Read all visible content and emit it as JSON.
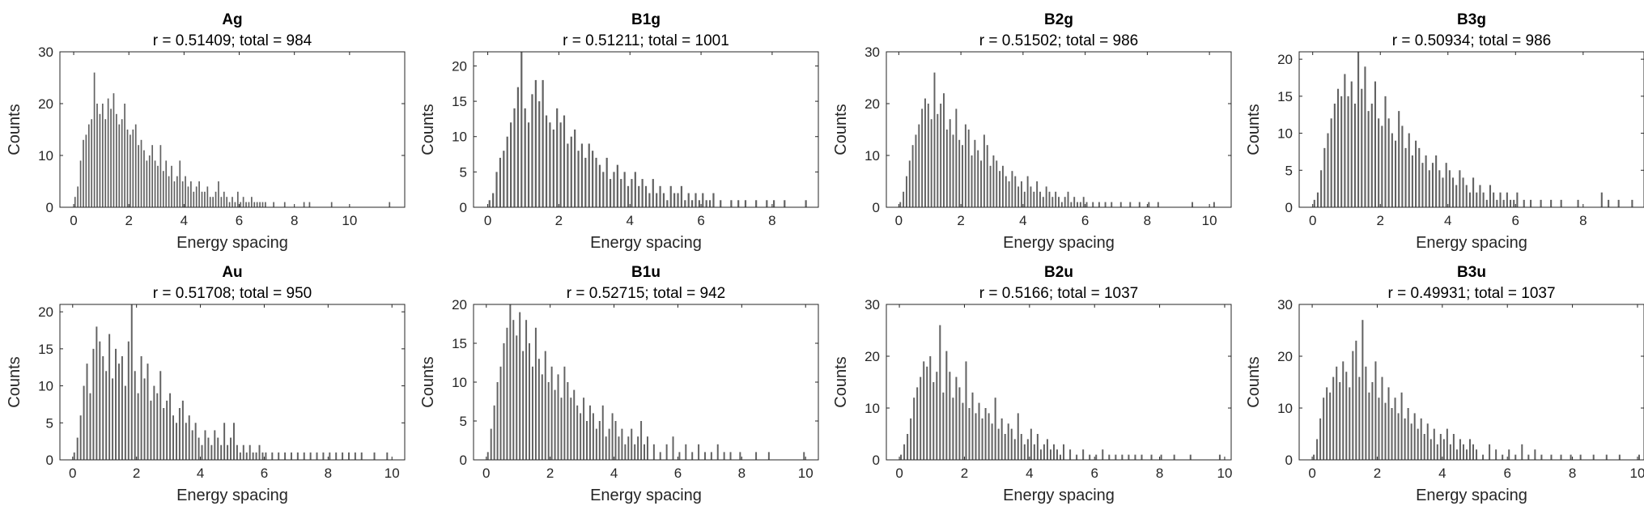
{
  "chart_data": [
    {
      "type": "bar",
      "title": "Ag",
      "subtitle": "r = 0.51409; total = 984",
      "xlabel": "Energy spacing",
      "ylabel": "Counts",
      "xlim": [
        -0.5,
        12
      ],
      "ylim": [
        0,
        30
      ],
      "xticks": [
        0,
        2,
        4,
        6,
        8,
        10
      ],
      "yticks": [
        0,
        10,
        20,
        30
      ],
      "bar_color": "#626262",
      "bin_width": 0.05,
      "x": [
        0.05,
        0.15,
        0.25,
        0.35,
        0.45,
        0.55,
        0.65,
        0.75,
        0.85,
        0.95,
        1.05,
        1.15,
        1.25,
        1.35,
        1.45,
        1.55,
        1.65,
        1.75,
        1.85,
        1.95,
        2.05,
        2.15,
        2.25,
        2.35,
        2.45,
        2.55,
        2.65,
        2.75,
        2.85,
        2.95,
        3.05,
        3.15,
        3.25,
        3.35,
        3.45,
        3.55,
        3.65,
        3.75,
        3.85,
        3.95,
        4.05,
        4.15,
        4.25,
        4.35,
        4.45,
        4.55,
        4.65,
        4.75,
        4.85,
        4.95,
        5.05,
        5.15,
        5.25,
        5.35,
        5.45,
        5.55,
        5.65,
        5.75,
        5.85,
        5.95,
        6.05,
        6.15,
        6.25,
        6.35,
        6.45,
        6.55,
        6.65,
        6.75,
        6.85,
        6.95,
        7.25,
        7.65,
        8.35,
        8.55,
        9.35,
        11.45
      ],
      "values": [
        2,
        4,
        9,
        13,
        14,
        16,
        17,
        26,
        20,
        18,
        20,
        17,
        21,
        19,
        22,
        18,
        16,
        17,
        20,
        15,
        14,
        15,
        16,
        12,
        13,
        11,
        9,
        10,
        12,
        9,
        8,
        12,
        7,
        9,
        6,
        8,
        5,
        6,
        9,
        5,
        6,
        4,
        5,
        3,
        4,
        5,
        3,
        3,
        4,
        2,
        2,
        3,
        5,
        2,
        3,
        2,
        1,
        2,
        1,
        3,
        1,
        2,
        1,
        1,
        2,
        1,
        1,
        1,
        1,
        1,
        1,
        1,
        1,
        1,
        1,
        1
      ]
    },
    {
      "type": "bar",
      "title": "B1g",
      "subtitle": "r = 0.51211; total = 1001",
      "xlabel": "Energy spacing",
      "ylabel": "Counts",
      "xlim": [
        -0.4,
        9.3
      ],
      "ylim": [
        0,
        22
      ],
      "xticks": [
        0,
        2,
        4,
        6,
        8
      ],
      "yticks": [
        0,
        5,
        10,
        15,
        20
      ],
      "bar_color": "#626262",
      "bin_width": 0.05,
      "x": [
        0.05,
        0.15,
        0.25,
        0.35,
        0.45,
        0.55,
        0.65,
        0.75,
        0.85,
        0.95,
        1.05,
        1.15,
        1.25,
        1.35,
        1.45,
        1.55,
        1.65,
        1.75,
        1.85,
        1.95,
        2.05,
        2.15,
        2.25,
        2.35,
        2.45,
        2.55,
        2.65,
        2.75,
        2.85,
        2.95,
        3.05,
        3.15,
        3.25,
        3.35,
        3.45,
        3.55,
        3.65,
        3.75,
        3.85,
        3.95,
        4.05,
        4.15,
        4.25,
        4.35,
        4.45,
        4.55,
        4.65,
        4.75,
        4.85,
        4.95,
        5.05,
        5.15,
        5.25,
        5.35,
        5.45,
        5.55,
        5.65,
        5.75,
        5.85,
        5.95,
        6.05,
        6.15,
        6.25,
        6.35,
        6.55,
        6.85,
        7.05,
        7.25,
        7.55,
        7.85,
        8.05,
        8.35,
        8.95
      ],
      "values": [
        1,
        2,
        5,
        7,
        8,
        10,
        12,
        14,
        17,
        22,
        14,
        12,
        16,
        18,
        15,
        18,
        13,
        12,
        11,
        14,
        12,
        13,
        9,
        10,
        11,
        8,
        9,
        7,
        9,
        8,
        7,
        6,
        5,
        7,
        4,
        5,
        6,
        4,
        5,
        3,
        4,
        5,
        3,
        4,
        3,
        2,
        4,
        2,
        3,
        2,
        1,
        3,
        2,
        2,
        3,
        1,
        2,
        1,
        2,
        1,
        2,
        1,
        1,
        2,
        1,
        1,
        1,
        1,
        1,
        1,
        1,
        1,
        1
      ]
    },
    {
      "type": "bar",
      "title": "B2g",
      "subtitle": "r = 0.51502; total = 986",
      "xlabel": "Energy spacing",
      "ylabel": "Counts",
      "xlim": [
        -0.4,
        10.7
      ],
      "ylim": [
        0,
        30
      ],
      "xticks": [
        0,
        2,
        4,
        6,
        8,
        10
      ],
      "yticks": [
        0,
        10,
        20,
        30
      ],
      "bar_color": "#626262",
      "bin_width": 0.05,
      "x": [
        0.05,
        0.15,
        0.25,
        0.35,
        0.45,
        0.55,
        0.65,
        0.75,
        0.85,
        0.95,
        1.05,
        1.15,
        1.25,
        1.35,
        1.45,
        1.55,
        1.65,
        1.75,
        1.85,
        1.95,
        2.05,
        2.15,
        2.25,
        2.35,
        2.45,
        2.55,
        2.65,
        2.75,
        2.85,
        2.95,
        3.05,
        3.15,
        3.25,
        3.35,
        3.45,
        3.55,
        3.65,
        3.75,
        3.85,
        3.95,
        4.05,
        4.15,
        4.25,
        4.35,
        4.45,
        4.55,
        4.65,
        4.75,
        4.85,
        4.95,
        5.05,
        5.15,
        5.25,
        5.35,
        5.45,
        5.55,
        5.65,
        5.75,
        5.85,
        5.95,
        6.05,
        6.25,
        6.45,
        6.65,
        6.85,
        7.15,
        7.45,
        7.75,
        8.05,
        8.35,
        9.45,
        10.15
      ],
      "values": [
        1,
        3,
        6,
        9,
        12,
        14,
        16,
        19,
        21,
        20,
        17,
        26,
        18,
        20,
        22,
        15,
        17,
        14,
        19,
        13,
        12,
        16,
        15,
        10,
        13,
        11,
        9,
        14,
        12,
        8,
        10,
        9,
        7,
        8,
        6,
        5,
        7,
        6,
        4,
        5,
        3,
        6,
        4,
        3,
        5,
        3,
        2,
        4,
        3,
        2,
        3,
        2,
        1,
        2,
        3,
        1,
        2,
        1,
        1,
        2,
        1,
        1,
        1,
        1,
        1,
        1,
        1,
        1,
        1,
        1,
        1,
        1
      ]
    },
    {
      "type": "bar",
      "title": "B3g",
      "subtitle": "r = 0.50934; total = 986",
      "xlabel": "Energy spacing",
      "ylabel": "Counts",
      "xlim": [
        -0.4,
        9.8
      ],
      "ylim": [
        0,
        21
      ],
      "xticks": [
        0,
        2,
        4,
        6,
        8
      ],
      "yticks": [
        0,
        5,
        10,
        15,
        20
      ],
      "bar_color": "#626262",
      "bin_width": 0.05,
      "x": [
        0.05,
        0.15,
        0.25,
        0.35,
        0.45,
        0.55,
        0.65,
        0.75,
        0.85,
        0.95,
        1.05,
        1.15,
        1.25,
        1.35,
        1.45,
        1.55,
        1.65,
        1.75,
        1.85,
        1.95,
        2.05,
        2.15,
        2.25,
        2.35,
        2.45,
        2.55,
        2.65,
        2.75,
        2.85,
        2.95,
        3.05,
        3.15,
        3.25,
        3.35,
        3.45,
        3.55,
        3.65,
        3.75,
        3.85,
        3.95,
        4.05,
        4.15,
        4.25,
        4.35,
        4.45,
        4.55,
        4.65,
        4.75,
        4.85,
        4.95,
        5.05,
        5.15,
        5.25,
        5.35,
        5.45,
        5.55,
        5.65,
        5.75,
        5.85,
        5.95,
        6.05,
        6.25,
        6.45,
        6.75,
        7.05,
        7.35,
        7.85,
        8.55,
        8.75,
        9.05,
        9.45
      ],
      "values": [
        1,
        2,
        5,
        8,
        10,
        12,
        14,
        16,
        15,
        18,
        15,
        17,
        14,
        21,
        16,
        19,
        13,
        14,
        17,
        12,
        11,
        15,
        12,
        10,
        9,
        13,
        11,
        8,
        10,
        7,
        9,
        8,
        6,
        7,
        5,
        6,
        7,
        5,
        4,
        6,
        5,
        4,
        3,
        5,
        4,
        3,
        2,
        4,
        2,
        3,
        2,
        1,
        3,
        2,
        1,
        2,
        1,
        2,
        1,
        1,
        2,
        1,
        1,
        1,
        1,
        1,
        1,
        2,
        1,
        1,
        1
      ]
    },
    {
      "type": "bar",
      "title": "Au",
      "subtitle": "r = 0.51708; total = 950",
      "xlabel": "Energy spacing",
      "ylabel": "Counts",
      "xlim": [
        -0.4,
        10.4
      ],
      "ylim": [
        0,
        21
      ],
      "xticks": [
        0,
        2,
        4,
        6,
        8,
        10
      ],
      "yticks": [
        0,
        5,
        10,
        15,
        20
      ],
      "bar_color": "#626262",
      "bin_width": 0.05,
      "x": [
        0.05,
        0.15,
        0.25,
        0.35,
        0.45,
        0.55,
        0.65,
        0.75,
        0.85,
        0.95,
        1.05,
        1.15,
        1.25,
        1.35,
        1.45,
        1.55,
        1.65,
        1.75,
        1.85,
        1.95,
        2.05,
        2.15,
        2.25,
        2.35,
        2.45,
        2.55,
        2.65,
        2.75,
        2.85,
        2.95,
        3.05,
        3.15,
        3.25,
        3.35,
        3.45,
        3.55,
        3.65,
        3.75,
        3.85,
        3.95,
        4.05,
        4.15,
        4.25,
        4.35,
        4.45,
        4.55,
        4.65,
        4.75,
        4.85,
        4.95,
        5.05,
        5.15,
        5.25,
        5.35,
        5.45,
        5.55,
        5.65,
        5.75,
        5.85,
        5.95,
        6.05,
        6.25,
        6.45,
        6.65,
        6.85,
        7.05,
        7.25,
        7.45,
        7.65,
        7.85,
        8.05,
        8.25,
        8.45,
        8.65,
        8.85,
        9.05,
        9.45,
        9.85
      ],
      "values": [
        1,
        3,
        6,
        10,
        13,
        9,
        15,
        18,
        16,
        14,
        12,
        17,
        11,
        15,
        13,
        14,
        10,
        16,
        21,
        12,
        9,
        14,
        11,
        13,
        8,
        10,
        9,
        12,
        7,
        8,
        9,
        6,
        5,
        7,
        8,
        5,
        6,
        4,
        5,
        3,
        2,
        4,
        3,
        2,
        4,
        3,
        2,
        5,
        2,
        3,
        5,
        2,
        1,
        2,
        1,
        2,
        1,
        1,
        2,
        1,
        1,
        1,
        1,
        1,
        1,
        1,
        1,
        1,
        1,
        1,
        1,
        1,
        1,
        1,
        1,
        1,
        1,
        1
      ]
    },
    {
      "type": "bar",
      "title": "B1u",
      "subtitle": "r = 0.52715; total = 942",
      "xlabel": "Energy spacing",
      "ylabel": "Counts",
      "xlim": [
        -0.4,
        10.4
      ],
      "ylim": [
        0,
        20
      ],
      "xticks": [
        0,
        2,
        4,
        6,
        8,
        10
      ],
      "yticks": [
        0,
        5,
        10,
        15,
        20
      ],
      "bar_color": "#626262",
      "bin_width": 0.05,
      "x": [
        0.05,
        0.15,
        0.25,
        0.35,
        0.45,
        0.55,
        0.65,
        0.75,
        0.85,
        0.95,
        1.05,
        1.15,
        1.25,
        1.35,
        1.45,
        1.55,
        1.65,
        1.75,
        1.85,
        1.95,
        2.05,
        2.15,
        2.25,
        2.35,
        2.45,
        2.55,
        2.65,
        2.75,
        2.85,
        2.95,
        3.05,
        3.15,
        3.25,
        3.35,
        3.45,
        3.55,
        3.65,
        3.75,
        3.85,
        3.95,
        4.05,
        4.15,
        4.25,
        4.35,
        4.45,
        4.55,
        4.65,
        4.75,
        4.85,
        4.95,
        5.05,
        5.25,
        5.45,
        5.65,
        5.85,
        6.05,
        6.25,
        6.45,
        6.65,
        6.85,
        7.05,
        7.25,
        7.45,
        7.65,
        7.95,
        8.45,
        8.85,
        9.95
      ],
      "values": [
        1,
        4,
        7,
        10,
        12,
        15,
        17,
        20,
        18,
        16,
        19,
        14,
        18,
        15,
        12,
        17,
        13,
        11,
        14,
        10,
        12,
        9,
        11,
        8,
        12,
        10,
        8,
        9,
        7,
        6,
        8,
        5,
        7,
        6,
        4,
        5,
        7,
        3,
        4,
        6,
        5,
        3,
        4,
        2,
        3,
        4,
        2,
        3,
        5,
        2,
        3,
        2,
        1,
        2,
        3,
        1,
        2,
        1,
        2,
        1,
        1,
        2,
        1,
        1,
        1,
        1,
        1,
        1
      ]
    },
    {
      "type": "bar",
      "title": "B2u",
      "subtitle": "r = 0.5166; total = 1037",
      "xlabel": "Energy spacing",
      "ylabel": "Counts",
      "xlim": [
        -0.4,
        10.2
      ],
      "ylim": [
        0,
        30
      ],
      "xticks": [
        0,
        2,
        4,
        6,
        8,
        10
      ],
      "yticks": [
        0,
        10,
        20,
        30
      ],
      "bar_color": "#626262",
      "bin_width": 0.05,
      "x": [
        0.05,
        0.15,
        0.25,
        0.35,
        0.45,
        0.55,
        0.65,
        0.75,
        0.85,
        0.95,
        1.05,
        1.15,
        1.25,
        1.35,
        1.45,
        1.55,
        1.65,
        1.75,
        1.85,
        1.95,
        2.05,
        2.15,
        2.25,
        2.35,
        2.45,
        2.55,
        2.65,
        2.75,
        2.85,
        2.95,
        3.05,
        3.15,
        3.25,
        3.35,
        3.45,
        3.55,
        3.65,
        3.75,
        3.85,
        3.95,
        4.05,
        4.15,
        4.25,
        4.35,
        4.45,
        4.55,
        4.65,
        4.75,
        4.85,
        4.95,
        5.05,
        5.25,
        5.45,
        5.65,
        5.85,
        6.05,
        6.25,
        6.45,
        6.65,
        6.85,
        7.05,
        7.25,
        7.45,
        7.75,
        8.05,
        8.45,
        8.95,
        9.85
      ],
      "values": [
        1,
        3,
        5,
        8,
        12,
        14,
        16,
        19,
        18,
        20,
        15,
        17,
        26,
        13,
        21,
        17,
        12,
        16,
        14,
        11,
        19,
        10,
        13,
        9,
        11,
        8,
        10,
        9,
        7,
        12,
        6,
        8,
        5,
        7,
        6,
        4,
        9,
        5,
        3,
        4,
        6,
        3,
        5,
        2,
        3,
        4,
        2,
        3,
        2,
        1,
        3,
        2,
        1,
        2,
        1,
        1,
        2,
        1,
        1,
        1,
        1,
        1,
        1,
        1,
        1,
        1,
        1,
        1
      ]
    },
    {
      "type": "bar",
      "title": "B3u",
      "subtitle": "r = 0.49931; total = 1037",
      "xlabel": "Energy spacing",
      "ylabel": "Counts",
      "xlim": [
        -0.4,
        10.2
      ],
      "ylim": [
        0,
        30
      ],
      "xticks": [
        0,
        2,
        4,
        6,
        8,
        10
      ],
      "yticks": [
        0,
        10,
        20,
        30
      ],
      "bar_color": "#626262",
      "bin_width": 0.05,
      "x": [
        0.05,
        0.15,
        0.25,
        0.35,
        0.45,
        0.55,
        0.65,
        0.75,
        0.85,
        0.95,
        1.05,
        1.15,
        1.25,
        1.35,
        1.45,
        1.55,
        1.65,
        1.75,
        1.85,
        1.95,
        2.05,
        2.15,
        2.25,
        2.35,
        2.45,
        2.55,
        2.65,
        2.75,
        2.85,
        2.95,
        3.05,
        3.15,
        3.25,
        3.35,
        3.45,
        3.55,
        3.65,
        3.75,
        3.85,
        3.95,
        4.05,
        4.15,
        4.25,
        4.35,
        4.45,
        4.55,
        4.65,
        4.75,
        4.85,
        4.95,
        5.05,
        5.25,
        5.45,
        5.65,
        5.85,
        6.05,
        6.25,
        6.45,
        6.65,
        6.85,
        7.05,
        7.35,
        7.65,
        7.95,
        8.25,
        8.65,
        9.05,
        9.45,
        10.05
      ],
      "values": [
        1,
        4,
        8,
        12,
        14,
        13,
        16,
        18,
        15,
        19,
        17,
        14,
        21,
        23,
        16,
        27,
        18,
        13,
        15,
        19,
        12,
        16,
        11,
        14,
        10,
        12,
        9,
        13,
        8,
        10,
        7,
        9,
        6,
        8,
        5,
        7,
        4,
        6,
        3,
        5,
        4,
        6,
        3,
        5,
        2,
        4,
        3,
        2,
        4,
        3,
        2,
        1,
        3,
        2,
        1,
        2,
        1,
        3,
        1,
        2,
        1,
        1,
        1,
        1,
        1,
        1,
        1,
        1,
        1
      ]
    }
  ]
}
